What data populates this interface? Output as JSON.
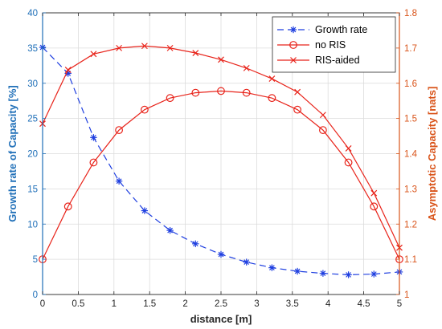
{
  "chart_data": {
    "type": "line",
    "xlabel": "distance [m]",
    "ylabel_left": "Growth rate of Capacity [%]",
    "ylabel_right": "Asymptotic Capacity [nats]",
    "xlim": [
      0,
      5
    ],
    "ylim_left": [
      0,
      40
    ],
    "ylim_right": [
      1.0,
      1.8
    ],
    "x_ticks": [
      "0",
      "0.5",
      "1",
      "1.5",
      "2",
      "2.5",
      "3",
      "3.5",
      "4",
      "4.5",
      "5"
    ],
    "y_left_ticks": [
      "0",
      "5",
      "10",
      "15",
      "20",
      "25",
      "30",
      "35",
      "40"
    ],
    "y_right_ticks": [
      "1",
      "1.1",
      "1.2",
      "1.3",
      "1.4",
      "1.5",
      "1.6",
      "1.7",
      "1.8"
    ],
    "grid": true,
    "legend_position": "top-right",
    "x": [
      0,
      0.357,
      0.714,
      1.071,
      1.429,
      1.786,
      2.143,
      2.5,
      2.857,
      3.214,
      3.571,
      3.929,
      4.286,
      4.643,
      5.0
    ],
    "series": [
      {
        "name": "Growth rate",
        "axis": "left",
        "color": "#1f3fe0",
        "line_style": "dashed",
        "marker": "asterisk",
        "values": [
          35.1,
          31.4,
          22.3,
          16.1,
          11.9,
          9.1,
          7.2,
          5.7,
          4.6,
          3.8,
          3.3,
          3.0,
          2.8,
          2.9,
          3.2
        ]
      },
      {
        "name": "no RIS",
        "axis": "right",
        "color": "#e8231a",
        "line_style": "solid",
        "marker": "circle",
        "values": [
          1.1,
          1.25,
          1.375,
          1.467,
          1.525,
          1.558,
          1.573,
          1.578,
          1.573,
          1.558,
          1.525,
          1.467,
          1.375,
          1.25,
          1.1
        ]
      },
      {
        "name": "RIS-aided",
        "axis": "right",
        "color": "#e8231a",
        "line_style": "solid",
        "marker": "x",
        "values": [
          1.485,
          1.638,
          1.683,
          1.7,
          1.706,
          1.7,
          1.686,
          1.667,
          1.643,
          1.613,
          1.575,
          1.51,
          1.415,
          1.288,
          1.133
        ]
      }
    ]
  }
}
